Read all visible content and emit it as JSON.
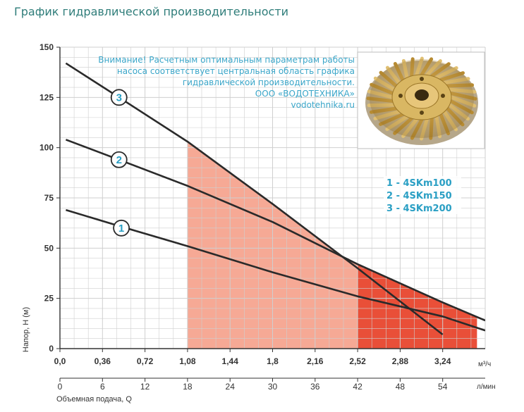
{
  "page": {
    "title": "График гидравлической производительности"
  },
  "chart_data": {
    "type": "line",
    "title": "График гидравлической производительности",
    "ylabel": "Напор, H (м)",
    "xlabel": "Объемная подача, Q",
    "x_unit_primary": "м³/ч",
    "x_unit_secondary": "л/мин",
    "xlim": [
      0,
      3.6
    ],
    "ylim": [
      0,
      150
    ],
    "grid": true,
    "x_ticks_primary": [
      "0,0",
      "0,36",
      "0,72",
      "1,08",
      "1,44",
      "1,8",
      "2,16",
      "2,52",
      "2,88",
      "3,24"
    ],
    "x_ticks_primary_values": [
      0,
      0.36,
      0.72,
      1.08,
      1.44,
      1.8,
      2.16,
      2.52,
      2.88,
      3.24
    ],
    "x_ticks_secondary": [
      "0",
      "6",
      "12",
      "18",
      "24",
      "30",
      "36",
      "42",
      "48",
      "54"
    ],
    "x_ticks_secondary_values": [
      0,
      0.36,
      0.72,
      1.08,
      1.44,
      1.8,
      2.16,
      2.52,
      2.88,
      3.24
    ],
    "y_ticks": [
      "0",
      "25",
      "50",
      "75",
      "100",
      "125",
      "150"
    ],
    "y_ticks_values": [
      0,
      25,
      50,
      75,
      100,
      125,
      150
    ],
    "series": [
      {
        "marker": "1",
        "color": "#2a2a2a",
        "points": [
          [
            0.05,
            69
          ],
          [
            0.5,
            61
          ],
          [
            1.08,
            51
          ],
          [
            1.8,
            38
          ],
          [
            2.52,
            26
          ],
          [
            3.24,
            16
          ],
          [
            3.6,
            9
          ]
        ]
      },
      {
        "marker": "2",
        "color": "#2a2a2a",
        "points": [
          [
            0.05,
            104
          ],
          [
            0.5,
            94
          ],
          [
            1.08,
            81
          ],
          [
            1.8,
            63
          ],
          [
            2.52,
            42
          ],
          [
            3.24,
            23
          ],
          [
            3.6,
            14
          ]
        ]
      },
      {
        "marker": "3",
        "color": "#2a2a2a",
        "points": [
          [
            0.05,
            142
          ],
          [
            0.5,
            125
          ],
          [
            1.08,
            103
          ],
          [
            1.8,
            72
          ],
          [
            2.52,
            40
          ],
          [
            3.24,
            7
          ]
        ]
      }
    ],
    "marker_positions": [
      {
        "label": "1",
        "x": 0.52,
        "y": 60
      },
      {
        "label": "2",
        "x": 0.5,
        "y": 94
      },
      {
        "label": "3",
        "x": 0.5,
        "y": 125
      }
    ],
    "optimal_region": {
      "x_start": 1.08,
      "x_end": 3.53,
      "color": "#f5a08a"
    },
    "highlight_region": {
      "x_start": 2.52,
      "x_end": 3.53,
      "color": "#e8452e"
    },
    "legend": {
      "position": "right",
      "entries": [
        "1 - 4SKm100",
        "2 - 4SKm150",
        "3 - 4SKm200"
      ]
    },
    "note": {
      "lines": [
        "Внимание! Расчетным оптимальным параметрам работы",
        "насоса соответствует центральная область графика",
        "гидравлической производительности.",
        "ООО «ВОДОТЕХНИКА»",
        "vodotehnika.ru"
      ]
    },
    "colors": {
      "grid": "#cfcfcf",
      "curve": "#2a2a2a",
      "accent_text": "#2a9fc4",
      "title": "#2f7d7a"
    }
  },
  "product_image": {
    "icon": "impeller-image",
    "color": "#c9a04a"
  }
}
